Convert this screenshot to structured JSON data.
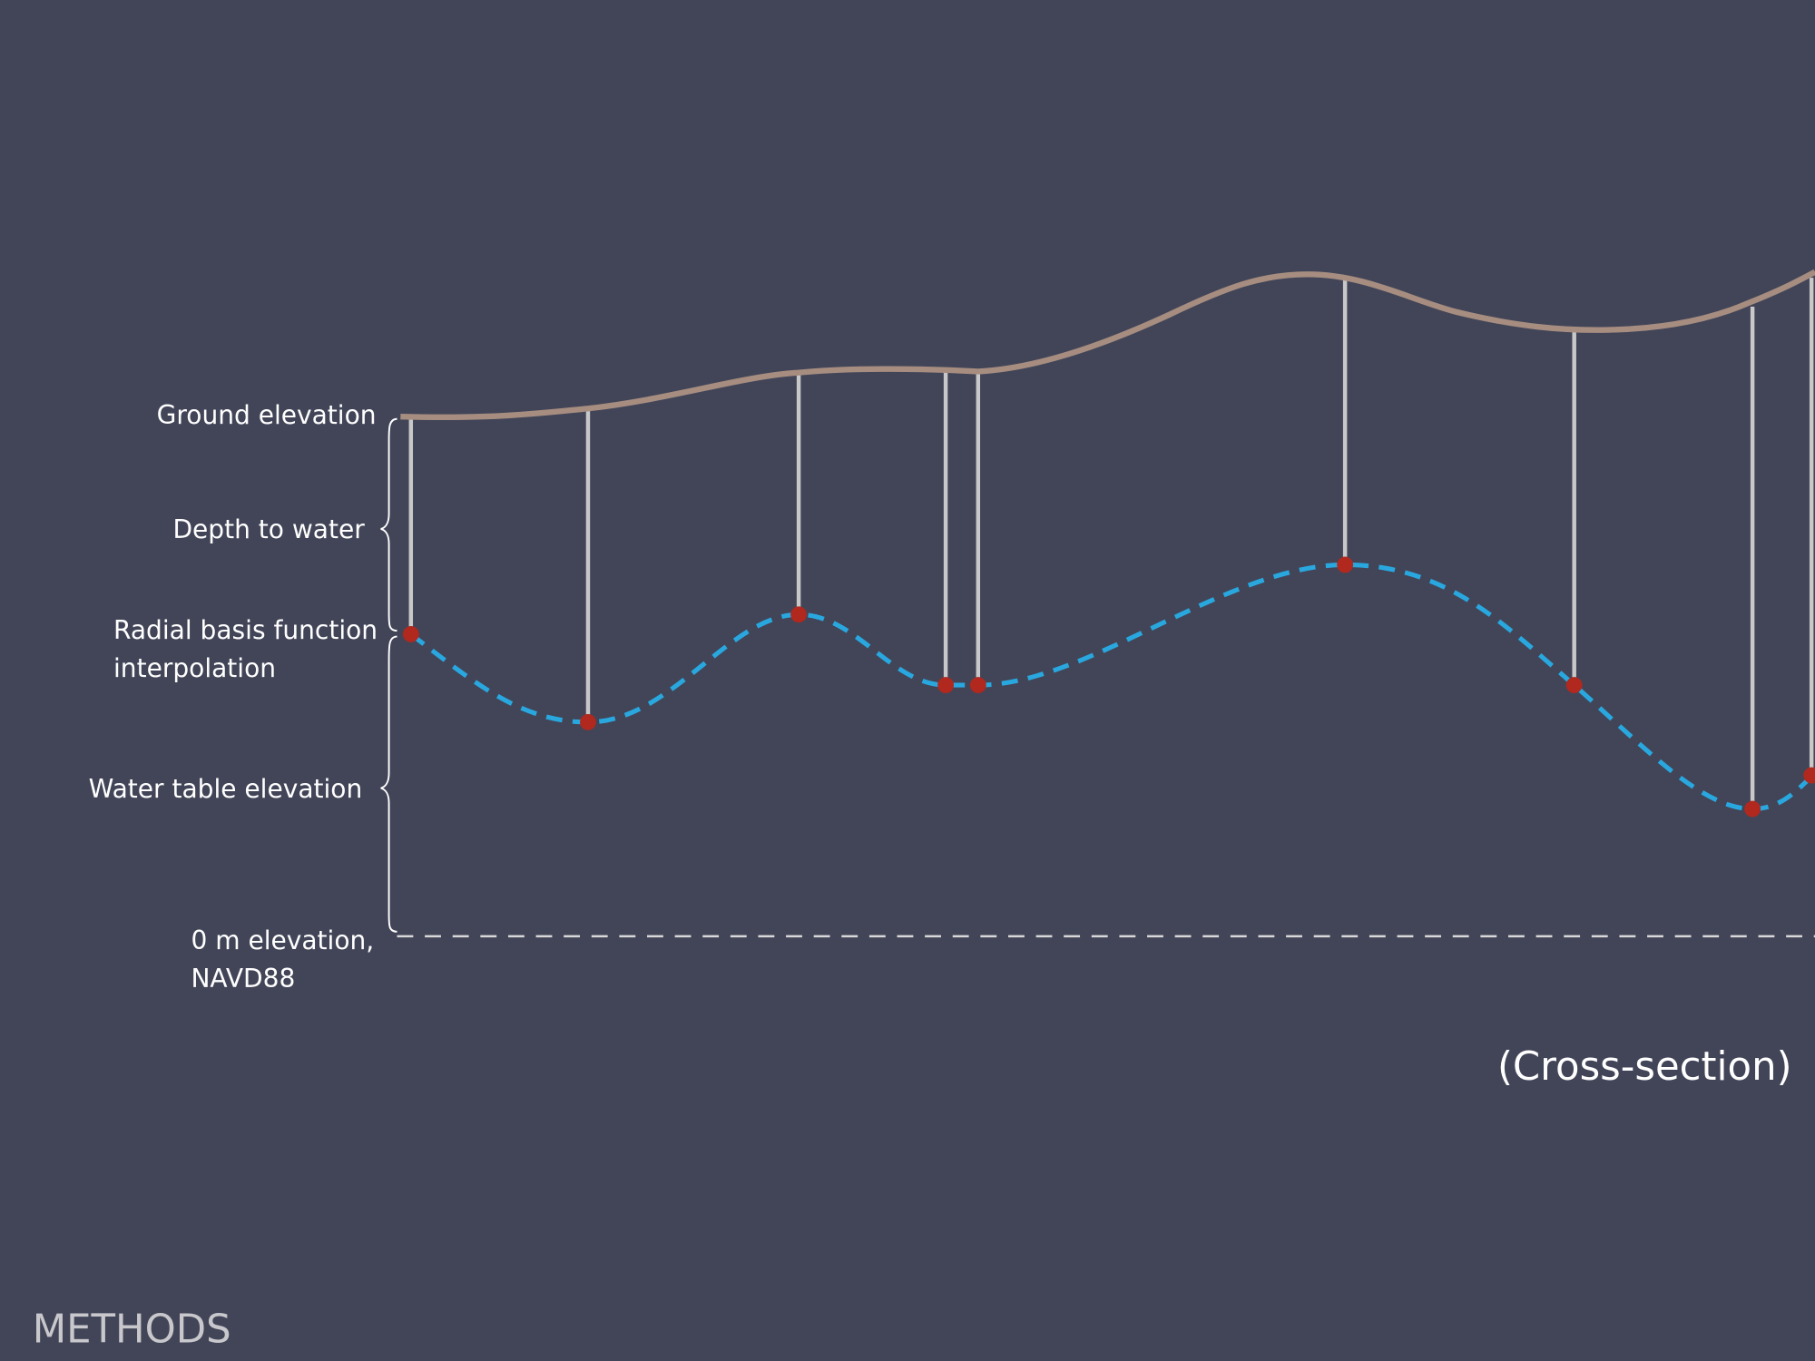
{
  "labels": {
    "ground_elevation": "Ground elevation",
    "depth_to_water": "Depth to water",
    "interpolation": [
      "Radial basis function",
      "interpolation"
    ],
    "water_table_elevation": "Water table elevation",
    "zero_elevation": [
      "0 m elevation,",
      "NAVD88"
    ]
  },
  "caption": "(Cross-section)",
  "footer": "METHODS"
}
